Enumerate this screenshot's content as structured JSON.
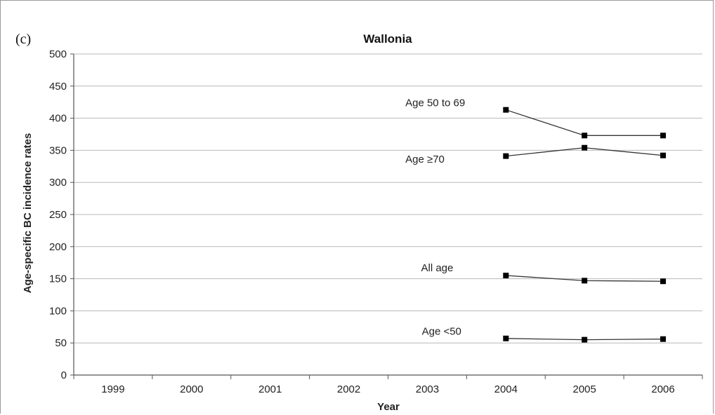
{
  "panel_label": "(c)",
  "chart_data": {
    "type": "line",
    "title": "Wallonia",
    "xlabel": "Year",
    "ylabel": "Age-specific BC incidence rates",
    "categories": [
      "1999",
      "2000",
      "2001",
      "2002",
      "2003",
      "2004",
      "2005",
      "2006"
    ],
    "ylim": [
      0,
      500
    ],
    "yticks": [
      0,
      50,
      100,
      150,
      200,
      250,
      300,
      350,
      400,
      450,
      500
    ],
    "grid": true,
    "series": [
      {
        "name": "Age 50 to 69",
        "values": [
          null,
          null,
          null,
          null,
          null,
          413,
          373,
          373
        ]
      },
      {
        "name": "Age ≥70",
        "values": [
          null,
          null,
          null,
          null,
          null,
          341,
          354,
          342
        ]
      },
      {
        "name": "All age",
        "values": [
          null,
          null,
          null,
          null,
          null,
          155,
          147,
          146
        ]
      },
      {
        "name": "Age <50",
        "values": [
          null,
          null,
          null,
          null,
          null,
          57,
          55,
          56
        ]
      }
    ]
  }
}
